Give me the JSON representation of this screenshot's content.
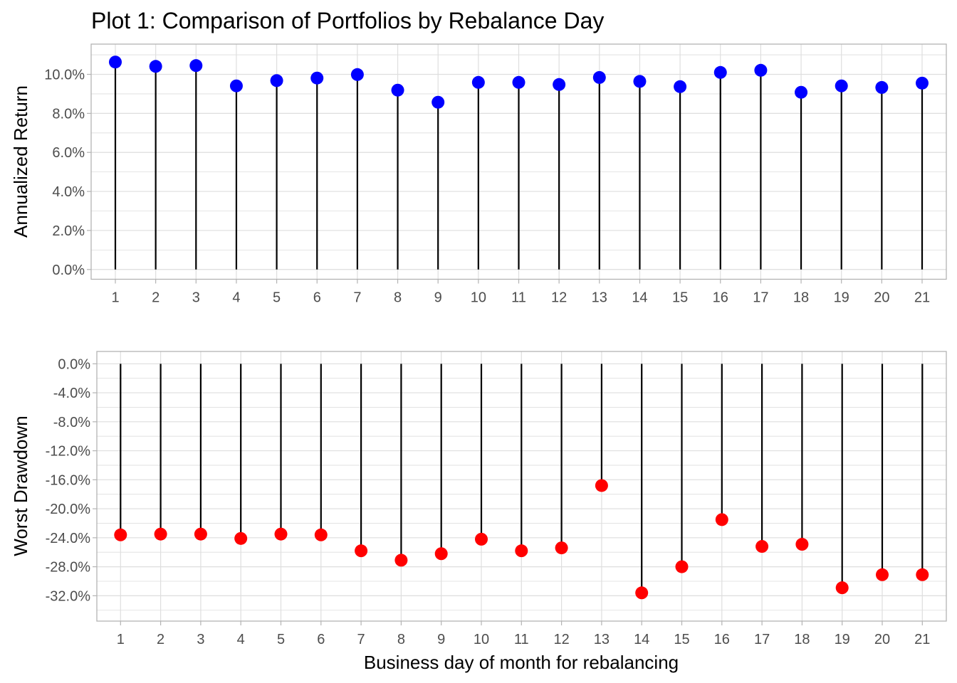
{
  "chart_data": {
    "title": "Plot 1: Comparison of Portfolios by Rebalance Day",
    "xlabel": "Business day of month for rebalancing",
    "colors": {
      "returns": "#0000ff",
      "drawdown": "#ff0000",
      "stem": "#000000",
      "grid": "#dedede",
      "border": "#b3b3b3"
    },
    "panels": [
      {
        "type": "lollipop",
        "ylabel": "Annualized Return",
        "x": [
          1,
          2,
          3,
          4,
          5,
          6,
          7,
          8,
          9,
          10,
          11,
          12,
          13,
          14,
          15,
          16,
          17,
          18,
          19,
          20,
          21
        ],
        "x_tick_labels": [
          "1",
          "2",
          "3",
          "4",
          "5",
          "6",
          "7",
          "8",
          "9",
          "10",
          "11",
          "12",
          "13",
          "14",
          "15",
          "16",
          "17",
          "18",
          "19",
          "20",
          "21"
        ],
        "values": [
          10.63,
          10.41,
          10.45,
          9.41,
          9.68,
          9.81,
          9.99,
          9.19,
          8.57,
          9.59,
          9.59,
          9.48,
          9.84,
          9.64,
          9.37,
          10.1,
          10.21,
          9.08,
          9.41,
          9.33,
          9.55
        ],
        "unit": "%",
        "ylim": [
          -0.5,
          11.55
        ],
        "y_ticks": [
          0,
          2,
          4,
          6,
          8,
          10
        ],
        "y_tick_labels": [
          "0.0%",
          "2.0%",
          "4.0%",
          "6.0%",
          "8.0%",
          "10.0%"
        ],
        "y_minor_ticks": [
          1,
          3,
          5,
          7,
          9,
          11
        ],
        "grid": true
      },
      {
        "type": "lollipop",
        "ylabel": "Worst Drawdown",
        "x": [
          1,
          2,
          3,
          4,
          5,
          6,
          7,
          8,
          9,
          10,
          11,
          12,
          13,
          14,
          15,
          16,
          17,
          18,
          19,
          20,
          21
        ],
        "x_tick_labels": [
          "1",
          "2",
          "3",
          "4",
          "5",
          "6",
          "7",
          "8",
          "9",
          "10",
          "11",
          "12",
          "13",
          "14",
          "15",
          "16",
          "17",
          "18",
          "19",
          "20",
          "21"
        ],
        "values": [
          -23.6,
          -23.5,
          -23.5,
          -24.1,
          -23.5,
          -23.6,
          -25.8,
          -27.1,
          -26.2,
          -24.2,
          -25.8,
          -25.4,
          -16.8,
          -31.6,
          -28.0,
          -21.5,
          -25.2,
          -24.9,
          -30.9,
          -29.1,
          -29.1
        ],
        "unit": "%",
        "ylim": [
          -35.5,
          1.7
        ],
        "y_ticks": [
          0,
          -4,
          -8,
          -12,
          -16,
          -20,
          -24,
          -28,
          -32
        ],
        "y_tick_labels": [
          "0.0%",
          "-4.0%",
          "-8.0%",
          "-12.0%",
          "-16.0%",
          "-20.0%",
          "-24.0%",
          "-28.0%",
          "-32.0%"
        ],
        "y_minor_ticks": [
          -2,
          -6,
          -10,
          -14,
          -18,
          -22,
          -26,
          -30,
          -34
        ],
        "grid": true
      }
    ]
  }
}
